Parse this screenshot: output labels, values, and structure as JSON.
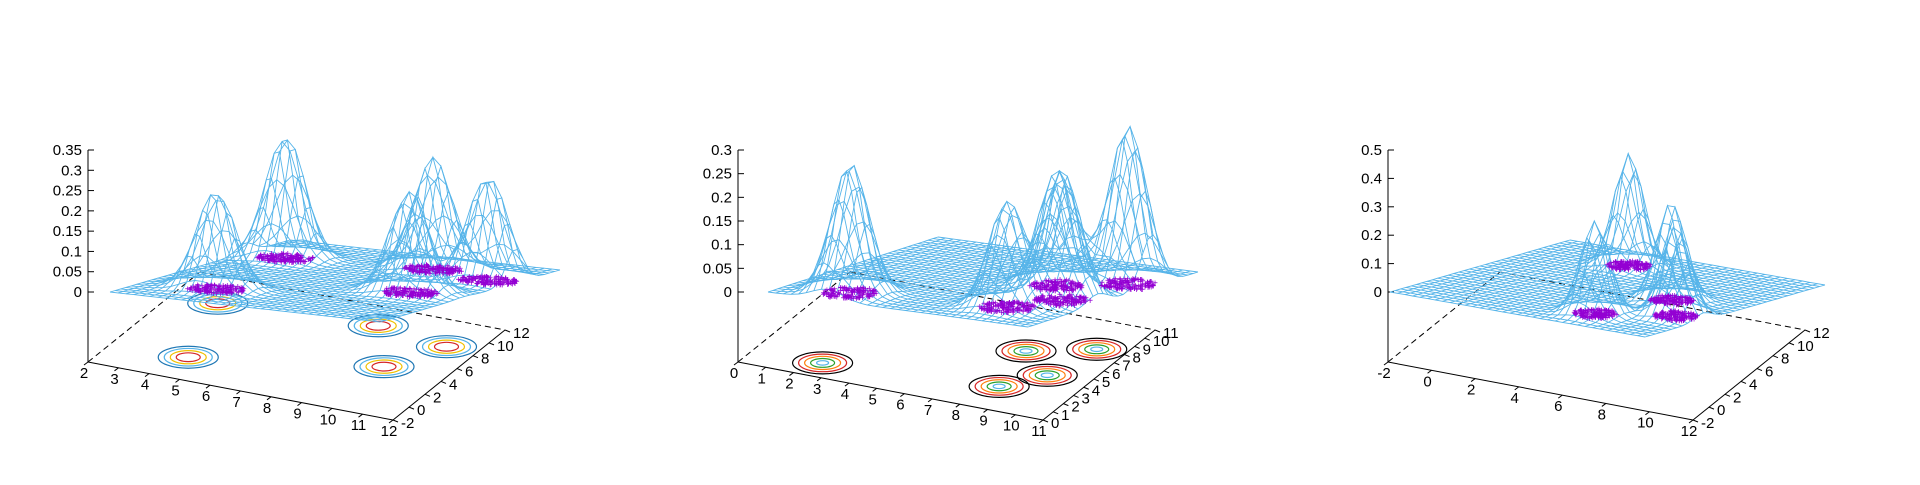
{
  "colors": {
    "mesh": "#56b4e9",
    "points": "#9400d3",
    "axis": "#000000"
  },
  "chart_data": [
    {
      "type": "surface3d",
      "title": "",
      "x_ticks": [
        "2",
        "3",
        "4",
        "5",
        "6",
        "7",
        "8",
        "9",
        "10",
        "11",
        "12"
      ],
      "y_ticks": [
        "-2",
        "0",
        "2",
        "4",
        "6",
        "8",
        "10",
        "12"
      ],
      "z_ticks": [
        "0",
        "0.05",
        "0.1",
        "0.15",
        "0.2",
        "0.25",
        "0.3",
        "0.35"
      ],
      "xlim": [
        2,
        12
      ],
      "ylim": [
        -2,
        12
      ],
      "zlim": [
        0,
        0.35
      ],
      "peaks": [
        {
          "x": 4.5,
          "y": 1.0,
          "height": 0.27
        },
        {
          "x": 3.5,
          "y": 8.5,
          "height": 0.34
        },
        {
          "x": 8.5,
          "y": 9.5,
          "height": 0.31
        },
        {
          "x": 10.0,
          "y": 4.5,
          "height": 0.28
        },
        {
          "x": 11.0,
          "y": 8.5,
          "height": 0.29
        }
      ],
      "contours": true,
      "point_clusters": true
    },
    {
      "type": "surface3d",
      "title": "",
      "x_ticks": [
        "0",
        "1",
        "2",
        "3",
        "4",
        "5",
        "6",
        "7",
        "8",
        "9",
        "10",
        "11"
      ],
      "y_ticks": [
        "0",
        "1",
        "2",
        "3",
        "4",
        "5",
        "6",
        "7",
        "8",
        "9",
        "10",
        "11"
      ],
      "z_ticks": [
        "0",
        "0.05",
        "0.1",
        "0.15",
        "0.2",
        "0.25",
        "0.3"
      ],
      "xlim": [
        0,
        11
      ],
      "ylim": [
        0,
        11
      ],
      "zlim": [
        0,
        0.3
      ],
      "peaks": [
        {
          "x": 2.5,
          "y": 1.5,
          "height": 0.27
        },
        {
          "x": 8.5,
          "y": 2.5,
          "height": 0.22
        },
        {
          "x": 9.5,
          "y": 4.5,
          "height": 0.27
        },
        {
          "x": 10.0,
          "y": 8.0,
          "height": 0.33
        },
        {
          "x": 8.0,
          "y": 6.5,
          "height": 0.24
        }
      ],
      "contours": true,
      "point_clusters": true
    },
    {
      "type": "surface3d",
      "title": "",
      "x_ticks": [
        "-2",
        "0",
        "2",
        "4",
        "6",
        "8",
        "10",
        "12"
      ],
      "y_ticks": [
        "-2",
        "0",
        "2",
        "4",
        "6",
        "8",
        "10",
        "12"
      ],
      "z_ticks": [
        "0",
        "0.1",
        "0.2",
        "0.3",
        "0.4",
        "0.5"
      ],
      "xlim": [
        -2,
        12
      ],
      "ylim": [
        -2,
        12
      ],
      "zlim": [
        0,
        0.5
      ],
      "peaks": [
        {
          "x": 3.0,
          "y": 9.5,
          "height": 0.4
        },
        {
          "x": 7.5,
          "y": 0.5,
          "height": 0.33
        },
        {
          "x": 10.5,
          "y": 2.5,
          "height": 0.32
        },
        {
          "x": 8.5,
          "y": 5.0,
          "height": 0.35
        }
      ],
      "contours": false,
      "point_clusters": true
    }
  ]
}
